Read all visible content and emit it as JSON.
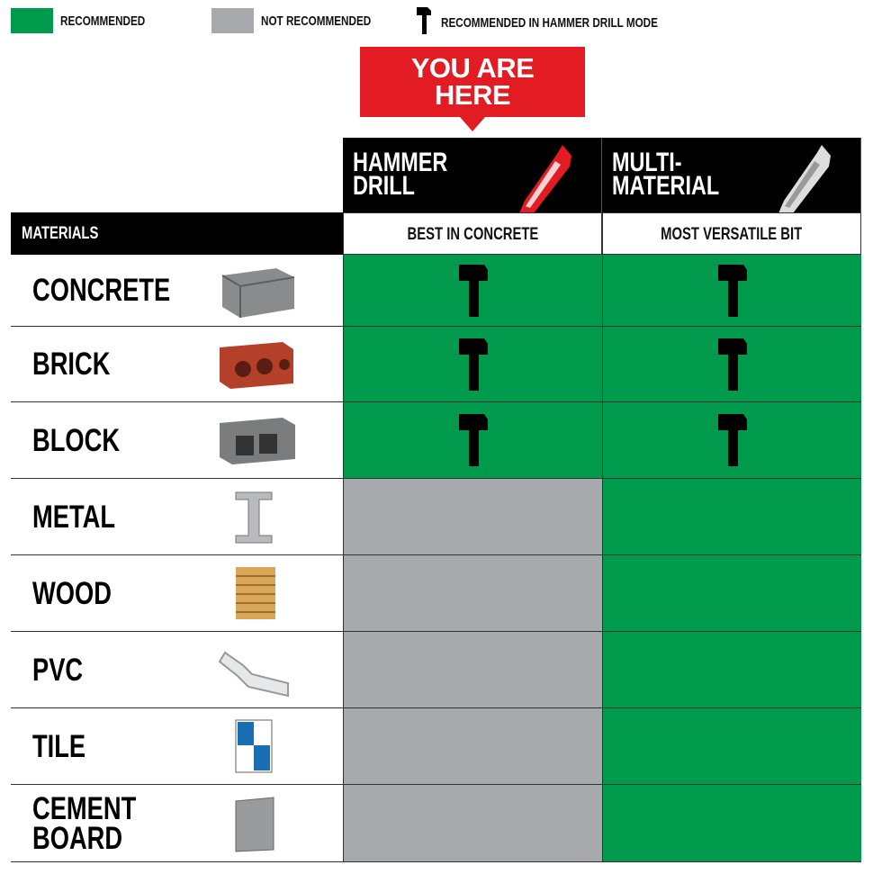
{
  "legend": {
    "recommended": "RECOMMENDED",
    "not_recommended": "NOT RECOMMENDED",
    "hammer_mode": "RECOMMENDED IN HAMMER DRILL MODE"
  },
  "colors": {
    "recommended": "#009a4c",
    "not_recommended": "#a7a9ac",
    "callout": "#e31b23"
  },
  "callout": {
    "line1": "YOU ARE",
    "line2": "HERE"
  },
  "columns": [
    {
      "line1": "HAMMER",
      "line2": "DRILL",
      "subtitle": "BEST IN CONCRETE",
      "icon": "red-drill-bit"
    },
    {
      "line1": "MULTI-",
      "line2": "MATERIAL",
      "subtitle": "MOST VERSATILE BIT",
      "icon": "silver-drill-bit"
    }
  ],
  "materials_header": "MATERIALS",
  "rows": [
    {
      "label": "CONCRETE",
      "icon": "concrete-block",
      "hammer": "hammer-mode",
      "multi": "hammer-mode"
    },
    {
      "label": "BRICK",
      "icon": "brick",
      "hammer": "hammer-mode",
      "multi": "hammer-mode"
    },
    {
      "label": "BLOCK",
      "icon": "cinder-block",
      "hammer": "hammer-mode",
      "multi": "hammer-mode"
    },
    {
      "label": "METAL",
      "icon": "i-beam",
      "hammer": "not-recommended",
      "multi": "recommended"
    },
    {
      "label": "WOOD",
      "icon": "wood-stack",
      "hammer": "not-recommended",
      "multi": "recommended"
    },
    {
      "label": "PVC",
      "icon": "pvc-elbow",
      "hammer": "not-recommended",
      "multi": "recommended"
    },
    {
      "label": "TILE",
      "icon": "tile",
      "hammer": "not-recommended",
      "multi": "recommended"
    },
    {
      "label": "CEMENT\nBOARD",
      "icon": "cement-board",
      "hammer": "not-recommended",
      "multi": "recommended"
    }
  ]
}
